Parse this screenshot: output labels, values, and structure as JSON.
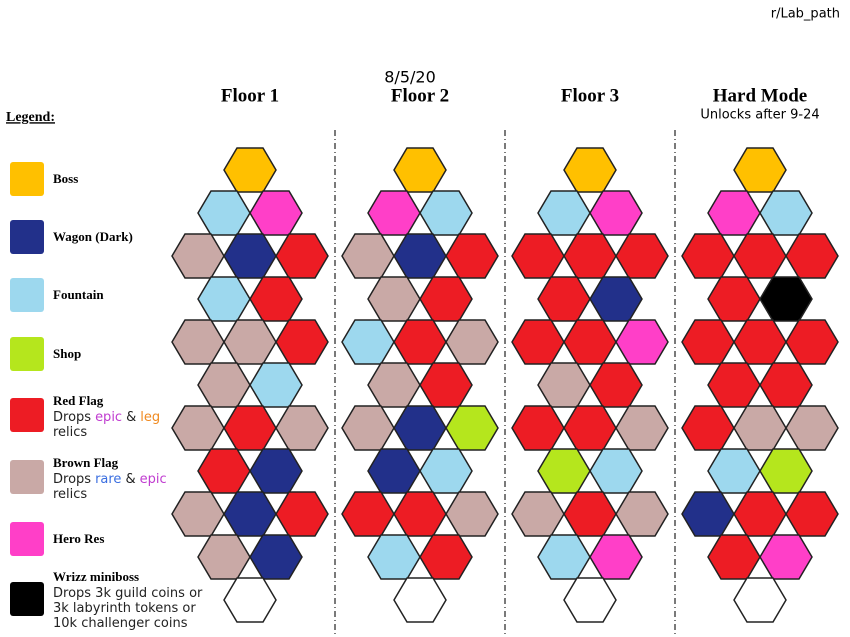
{
  "header": {
    "source": "r/Lab_path",
    "date": "8/5/20",
    "legend_title": "Legend:"
  },
  "legend": [
    {
      "label": "Boss",
      "color": "#ffc000"
    },
    {
      "label": "Wagon (Dark)",
      "color": "#22308a"
    },
    {
      "label": "Fountain",
      "color": "#9dd8ee"
    },
    {
      "label": "Shop",
      "color": "#b5e61d"
    },
    {
      "label": "Red Flag",
      "color": "#ed1c24",
      "desc": [
        [
          {
            "text": "Drops"
          },
          {
            "text": "epic",
            "color": "#c03cd0"
          },
          {
            "text": "&"
          },
          {
            "text": "leg",
            "color": "#f08a20"
          }
        ],
        [
          {
            "text": "relics"
          }
        ]
      ]
    },
    {
      "label": "Brown Flag",
      "color": "#c9a9a6",
      "desc": [
        [
          {
            "text": "Drops"
          },
          {
            "text": "rare",
            "color": "#3a6ee0"
          },
          {
            "text": "&"
          },
          {
            "text": "epic",
            "color": "#c03cd0"
          }
        ],
        [
          {
            "text": "relics"
          }
        ]
      ]
    },
    {
      "label": "Hero Res",
      "color": "#ff3fc8"
    },
    {
      "label": "Wrizz miniboss",
      "color": "#000000",
      "desc": [
        [
          {
            "text": "Drops 3k guild coins or"
          }
        ],
        [
          {
            "text": "3k labyrinth tokens or"
          }
        ],
        [
          {
            "text": "10k challenger coins"
          }
        ]
      ]
    }
  ],
  "floors": [
    {
      "title": "Floor 1",
      "rows": [
        [
          0
        ],
        [
          2,
          6
        ],
        [
          5,
          1,
          4
        ],
        [
          2,
          4
        ],
        [
          5,
          5,
          4
        ],
        [
          5,
          2
        ],
        [
          5,
          4,
          5
        ],
        [
          4,
          1
        ],
        [
          5,
          1,
          4
        ],
        [
          5,
          1
        ],
        [
          null
        ]
      ]
    },
    {
      "title": "Floor 2",
      "rows": [
        [
          0
        ],
        [
          6,
          2
        ],
        [
          5,
          1,
          4
        ],
        [
          5,
          4
        ],
        [
          2,
          4,
          5
        ],
        [
          5,
          4
        ],
        [
          5,
          1,
          3
        ],
        [
          1,
          2
        ],
        [
          4,
          4,
          5
        ],
        [
          2,
          4
        ],
        [
          null
        ]
      ]
    },
    {
      "title": "Floor 3",
      "rows": [
        [
          0
        ],
        [
          2,
          6
        ],
        [
          4,
          4,
          4
        ],
        [
          4,
          1
        ],
        [
          4,
          4,
          6
        ],
        [
          5,
          4
        ],
        [
          4,
          4,
          5
        ],
        [
          3,
          2
        ],
        [
          5,
          4,
          5
        ],
        [
          2,
          6
        ],
        [
          null
        ]
      ]
    },
    {
      "title": "Hard Mode",
      "subtitle": "Unlocks after 9-24",
      "rows": [
        [
          0
        ],
        [
          6,
          2
        ],
        [
          4,
          4,
          4
        ],
        [
          4,
          7
        ],
        [
          4,
          4,
          4
        ],
        [
          4,
          4
        ],
        [
          4,
          5,
          5
        ],
        [
          2,
          3
        ],
        [
          1,
          4,
          4
        ],
        [
          4,
          6
        ],
        [
          null
        ]
      ]
    }
  ]
}
